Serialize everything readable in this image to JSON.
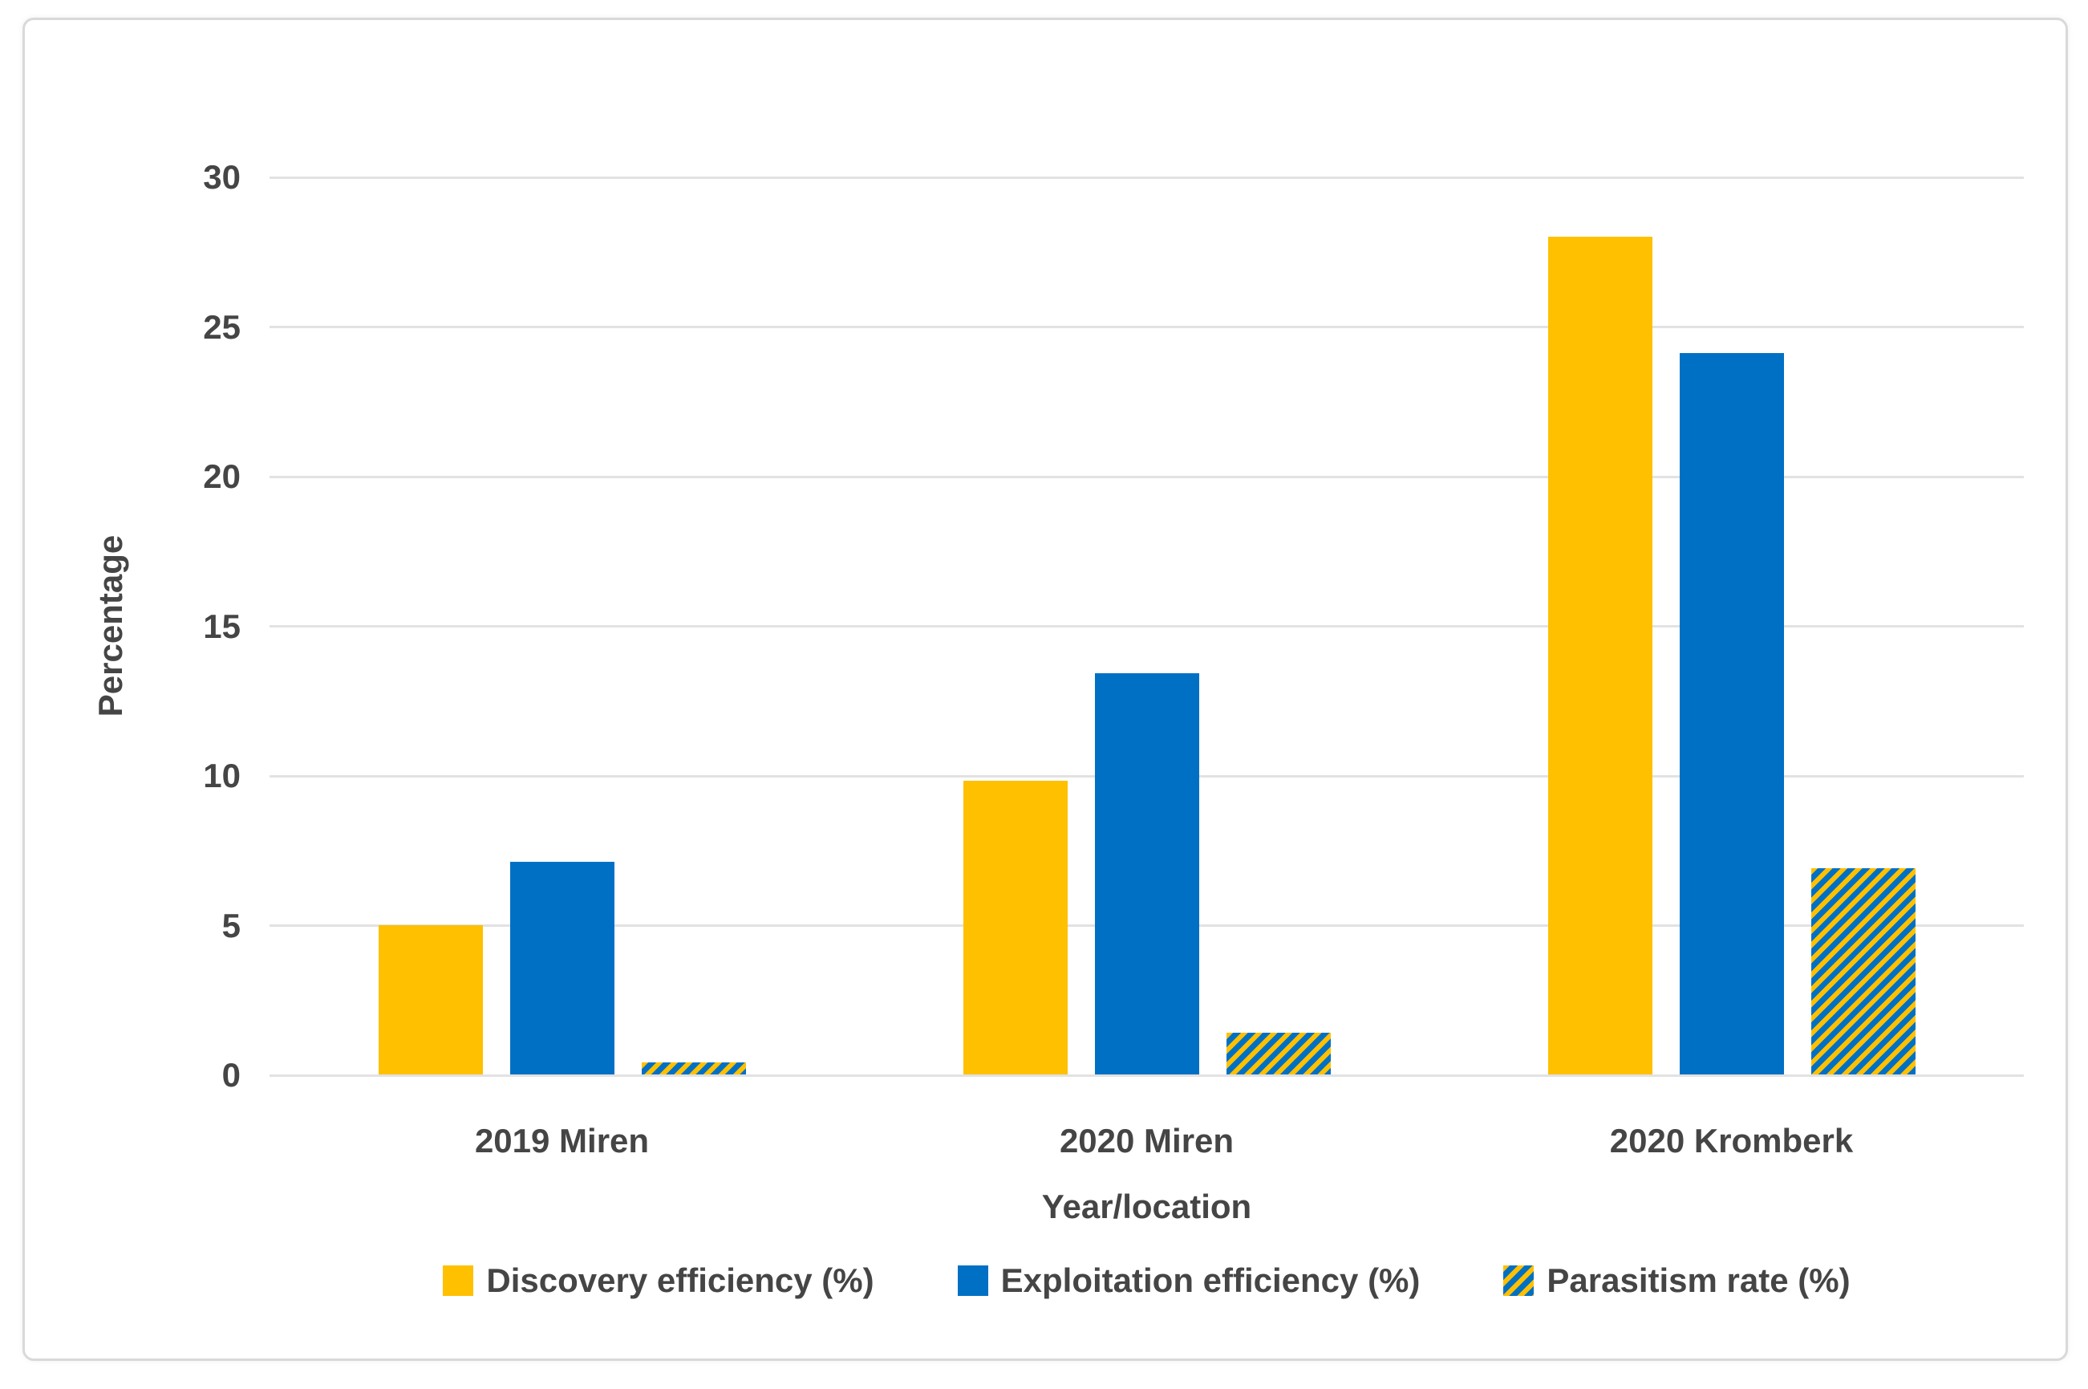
{
  "chart_data": {
    "type": "bar",
    "title": "",
    "categories": [
      "2019 Miren",
      "2020 Miren",
      "2020 Kromberk"
    ],
    "series": [
      {
        "name": "Discovery efficiency (%)",
        "pattern": "solid",
        "color": "#FFC000",
        "values": [
          5.0,
          9.8,
          28.0
        ]
      },
      {
        "name": "Exploitation efficiency (%)",
        "pattern": "solid",
        "color": "#0070C5",
        "values": [
          7.1,
          13.4,
          24.1
        ]
      },
      {
        "name": "Parasitism rate (%)",
        "pattern": "diagonal-stripes",
        "color": "#0070C5",
        "stripe_color": "#FFC000",
        "values": [
          0.4,
          1.4,
          6.9
        ]
      }
    ],
    "xlabel": "Year/location",
    "ylabel": "Percentage",
    "ylim": [
      0,
      30
    ],
    "yticks": [
      0,
      5,
      10,
      15,
      20,
      25,
      30
    ],
    "grid": true,
    "legend_position": "bottom",
    "colors": {
      "text": "#454545",
      "gridline": "#e2e2e2",
      "frame_border": "#d9d9d9",
      "background": "#ffffff"
    }
  }
}
